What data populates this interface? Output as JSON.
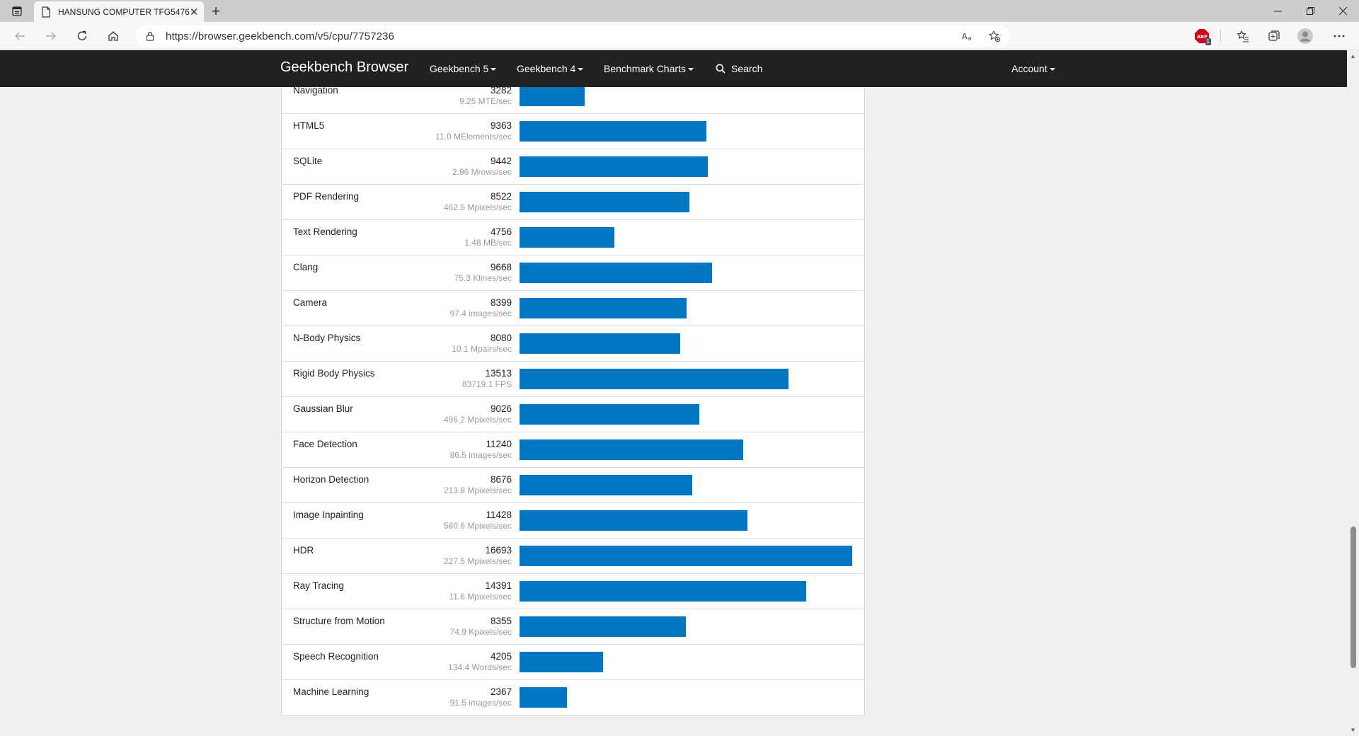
{
  "browser": {
    "tab_title": "HANSUNG COMPUTER TFG5476",
    "url": "https://browser.geekbench.com/v5/cpu/7757236",
    "adblock_badge": "1"
  },
  "site_nav": {
    "brand": "Geekbench Browser",
    "items": [
      {
        "label": "Geekbench 5"
      },
      {
        "label": "Geekbench 4"
      },
      {
        "label": "Benchmark Charts"
      }
    ],
    "search": "Search",
    "account": "Account"
  },
  "benchmarks": {
    "max_score": 16693,
    "rows": [
      {
        "name": "Navigation",
        "score": 3282,
        "rate": "9.25 MTE/sec"
      },
      {
        "name": "HTML5",
        "score": 9363,
        "rate": "11.0 MElements/sec"
      },
      {
        "name": "SQLite",
        "score": 9442,
        "rate": "2.96 Mrows/sec"
      },
      {
        "name": "PDF Rendering",
        "score": 8522,
        "rate": "462.5 Mpixels/sec"
      },
      {
        "name": "Text Rendering",
        "score": 4756,
        "rate": "1.48 MB/sec"
      },
      {
        "name": "Clang",
        "score": 9668,
        "rate": "75.3 Klines/sec"
      },
      {
        "name": "Camera",
        "score": 8399,
        "rate": "97.4 images/sec"
      },
      {
        "name": "N-Body Physics",
        "score": 8080,
        "rate": "10.1 Mpairs/sec"
      },
      {
        "name": "Rigid Body Physics",
        "score": 13513,
        "rate": "83719.1 FPS"
      },
      {
        "name": "Gaussian Blur",
        "score": 9026,
        "rate": "496.2 Mpixels/sec"
      },
      {
        "name": "Face Detection",
        "score": 11240,
        "rate": "86.5 images/sec"
      },
      {
        "name": "Horizon Detection",
        "score": 8676,
        "rate": "213.8 Mpixels/sec"
      },
      {
        "name": "Image Inpainting",
        "score": 11428,
        "rate": "560.6 Mpixels/sec"
      },
      {
        "name": "HDR",
        "score": 16693,
        "rate": "227.5 Mpixels/sec"
      },
      {
        "name": "Ray Tracing",
        "score": 14391,
        "rate": "11.6 Mpixels/sec"
      },
      {
        "name": "Structure from Motion",
        "score": 8355,
        "rate": "74.9 Kpixels/sec"
      },
      {
        "name": "Speech Recognition",
        "score": 4205,
        "rate": "134.4 Words/sec"
      },
      {
        "name": "Machine Learning",
        "score": 2367,
        "rate": "91.5 images/sec"
      }
    ]
  },
  "colors": {
    "bar": "#0077c0",
    "nav_bg": "#212121"
  }
}
